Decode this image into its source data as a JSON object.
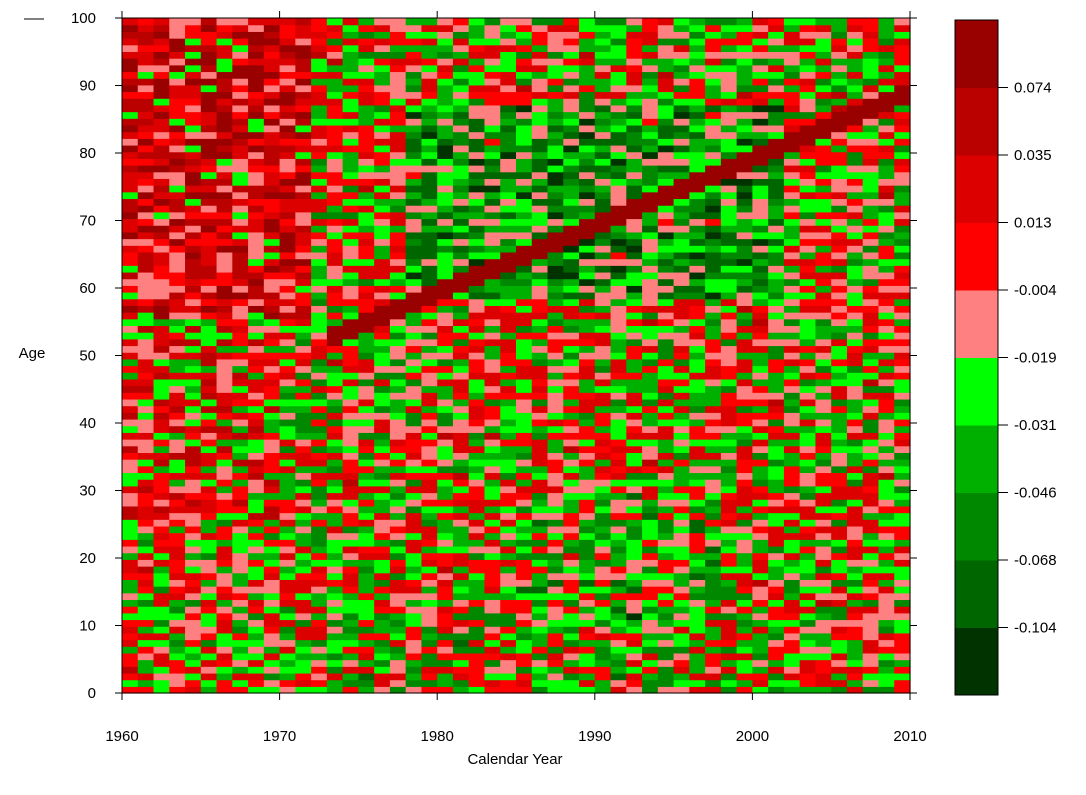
{
  "chart_data": {
    "type": "heatmap",
    "title": "",
    "xlabel": "Calendar Year",
    "ylabel": "Age",
    "xlim": [
      1960,
      2010
    ],
    "ylim": [
      0,
      100
    ],
    "x_ticks": [
      1960,
      1970,
      1980,
      1990,
      2000,
      2010
    ],
    "y_ticks": [
      0,
      10,
      20,
      30,
      40,
      50,
      60,
      70,
      80,
      90,
      100
    ],
    "legend": {
      "placement": "right",
      "bin_colors": [
        "#003300",
        "#006600",
        "#008800",
        "#00b000",
        "#00ff00",
        "#ff8080",
        "#ff0000",
        "#dd0000",
        "#bb0000",
        "#990000"
      ],
      "labels": [
        "-0.104",
        "-0.068",
        "-0.046",
        "-0.031",
        "-0.019",
        "-0.004",
        "0.013",
        "0.035",
        "0.074"
      ]
    },
    "notes": "Per-cell values estimated; general pattern: older ages in early years strongly positive (red), diagonal cohort band of dark red from ~age 50 in 1975 to ~age 90 in 2010, greener block ~ages 60-85 during 1978-2000."
  }
}
